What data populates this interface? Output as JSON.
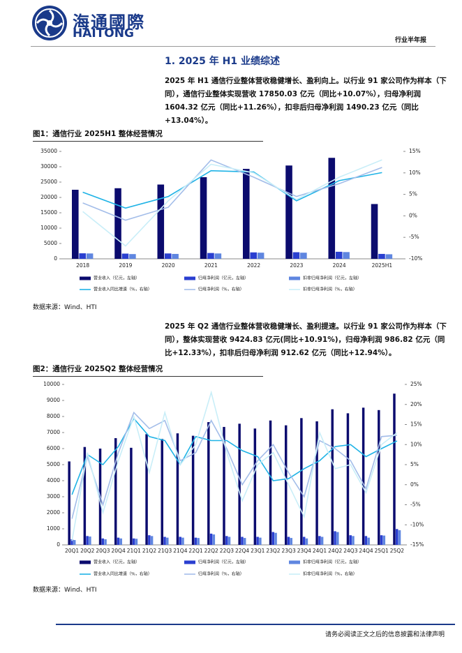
{
  "header": {
    "logo_cn": "海通國際",
    "logo_en": "HAITONG",
    "report_type": "行业半年报"
  },
  "section_title": "1.  2025 年 H1 业绩综述",
  "paragraphs": [
    "2025 年 H1 通信行业整体营收稳健增长、盈利向上。以行业 91 家公司作为样本（下同），通信行业整体实现营收 17850.03 亿元（同比+10.07%），归母净利润 1604.32 亿元（同比+11.26%），扣非后归母净利润 1490.23 亿元（同比+13.04%）。",
    "2025 年 Q2 通信行业整体营收稳健增长、盈利提速。以行业 91 家公司作为样本（下同），整体实现营收 9424.83 亿元(同比+10.91%)，归母净利润 986.82 亿元（同比+12.33%），扣非后归母净利润 912.62 亿元（同比+12.94%）。"
  ],
  "figures": [
    {
      "title": "图1：通信行业 2025H1 整体经营情况",
      "source": "数据来源：Wind、HTI"
    },
    {
      "title": "图2：通信行业 2025Q2 整体经营情况",
      "source": "数据来源：Wind、HTI"
    }
  ],
  "chart_data": [
    {
      "type": "combo",
      "categories": [
        "2018",
        "2019",
        "2020",
        "2021",
        "2022",
        "2023",
        "2024",
        "2025H1"
      ],
      "series": [
        {
          "name": "营业收入（亿元，左轴）",
          "type": "bar",
          "color": "#0b0b6e",
          "values": [
            22500,
            23000,
            24200,
            26600,
            29300,
            30400,
            32900,
            17850.03
          ]
        },
        {
          "name": "归母净利润（亿元，左轴）",
          "type": "bar",
          "color": "#2a3fd0",
          "values": [
            1800,
            1700,
            1750,
            1900,
            2100,
            2150,
            2300,
            1604.32
          ]
        },
        {
          "name": "扣非归母净利润（亿元，左轴）",
          "type": "bar",
          "color": "#5f86e0",
          "values": [
            1750,
            1550,
            1600,
            1750,
            2000,
            2000,
            2200,
            1490.23
          ]
        },
        {
          "name": "营业收入同比增速（%，右轴）",
          "type": "line",
          "axis": "y2",
          "color": "#1fb3e6",
          "values": [
            5.5,
            1.8,
            4.5,
            10.5,
            10.2,
            3.5,
            8.2,
            10.07
          ]
        },
        {
          "name": "归母净利润（%，右轴）",
          "type": "line",
          "axis": "y2",
          "color": "#a3bde9",
          "values": [
            3,
            -1,
            2,
            13,
            9,
            4.5,
            7.5,
            11.26
          ]
        },
        {
          "name": "扣非归母净利润（%，右轴）",
          "type": "line",
          "axis": "y2",
          "color": "#c9eef8",
          "values": [
            1,
            -7,
            3.5,
            12,
            10,
            3.8,
            9,
            13.04
          ]
        }
      ],
      "ylim": [
        0,
        35000
      ],
      "yticks": [
        0,
        5000,
        10000,
        15000,
        20000,
        25000,
        30000,
        35000
      ],
      "y2lim": [
        -10,
        15
      ],
      "y2ticks": [
        {
          "value": -10,
          "label": "-10%"
        },
        {
          "value": -5,
          "label": "-5%"
        },
        {
          "value": 0,
          "label": "0%"
        },
        {
          "value": 5,
          "label": "5%"
        },
        {
          "value": 10,
          "label": "10%"
        },
        {
          "value": 15,
          "label": "15%"
        }
      ]
    },
    {
      "type": "combo",
      "categories": [
        "20Q1",
        "20Q2",
        "20Q3",
        "20Q4",
        "21Q1",
        "21Q2",
        "21Q3",
        "21Q4",
        "22Q1",
        "22Q2",
        "22Q3",
        "22Q4",
        "23Q1",
        "23Q2",
        "23Q3",
        "23Q4",
        "24Q1",
        "24Q2",
        "24Q3",
        "24Q4",
        "25Q1",
        "25Q2"
      ],
      "series": [
        {
          "name": "营业收入（亿元，左轴）",
          "type": "bar",
          "color": "#0b0b6e",
          "values": [
            5200,
            6100,
            6000,
            6650,
            6050,
            6900,
            6600,
            6950,
            6800,
            7650,
            7350,
            7550,
            7250,
            7750,
            7450,
            7900,
            7700,
            8450,
            8200,
            8550,
            8400,
            9424.83
          ]
        },
        {
          "name": "归母净利润（亿元，左轴）",
          "type": "bar",
          "color": "#2a3fd0",
          "values": [
            350,
            550,
            400,
            450,
            400,
            600,
            500,
            500,
            450,
            700,
            550,
            500,
            500,
            800,
            500,
            500,
            550,
            850,
            600,
            550,
            600,
            986.82
          ]
        },
        {
          "name": "扣非归母净利润（亿元，左轴）",
          "type": "bar",
          "color": "#5f86e0",
          "values": [
            300,
            520,
            350,
            400,
            380,
            550,
            450,
            450,
            430,
            650,
            500,
            430,
            450,
            750,
            430,
            400,
            500,
            800,
            550,
            450,
            580,
            912.62
          ]
        },
        {
          "name": "营业收入同比增速（%，右轴）",
          "type": "line",
          "axis": "y2",
          "color": "#1fb3e6",
          "values": [
            -2.5,
            7.5,
            5,
            9.5,
            16.5,
            12,
            11,
            5,
            12,
            11,
            11,
            8.5,
            7,
            1,
            1.5,
            4,
            6,
            9.5,
            10,
            7,
            9,
            10.91
          ]
        },
        {
          "name": "归母净利润（%，右轴）",
          "type": "line",
          "axis": "y2",
          "color": "#a3bde9",
          "values": [
            -8.5,
            7,
            -5,
            8,
            18,
            14,
            16,
            6,
            8,
            16,
            9,
            0,
            6,
            10,
            3,
            -3,
            11,
            9,
            6,
            -1,
            12,
            12.33
          ]
        },
        {
          "name": "扣非归母净利润（%，右轴）",
          "type": "line",
          "axis": "y2",
          "color": "#c9eef8",
          "values": [
            -14,
            8,
            -7,
            6,
            17,
            3,
            18,
            5,
            10,
            23,
            8,
            -4,
            5,
            8,
            0,
            -8,
            13,
            4,
            5,
            -2,
            10,
            12.94
          ]
        }
      ],
      "ylim": [
        0,
        10000
      ],
      "yticks": [
        0,
        1000,
        2000,
        3000,
        4000,
        5000,
        6000,
        7000,
        8000,
        9000,
        10000
      ],
      "y2lim": [
        -15,
        25
      ],
      "y2ticks": [
        {
          "value": -15,
          "label": "-15%"
        },
        {
          "value": -10,
          "label": "-10%"
        },
        {
          "value": -5,
          "label": "-5%"
        },
        {
          "value": 0,
          "label": "0%"
        },
        {
          "value": 5,
          "label": "5%"
        },
        {
          "value": 10,
          "label": "10%"
        },
        {
          "value": 15,
          "label": "15%"
        },
        {
          "value": 20,
          "label": "20%"
        },
        {
          "value": 25,
          "label": "25%"
        }
      ]
    }
  ],
  "footer": "请务必阅读正文之后的信息披露和法律声明"
}
